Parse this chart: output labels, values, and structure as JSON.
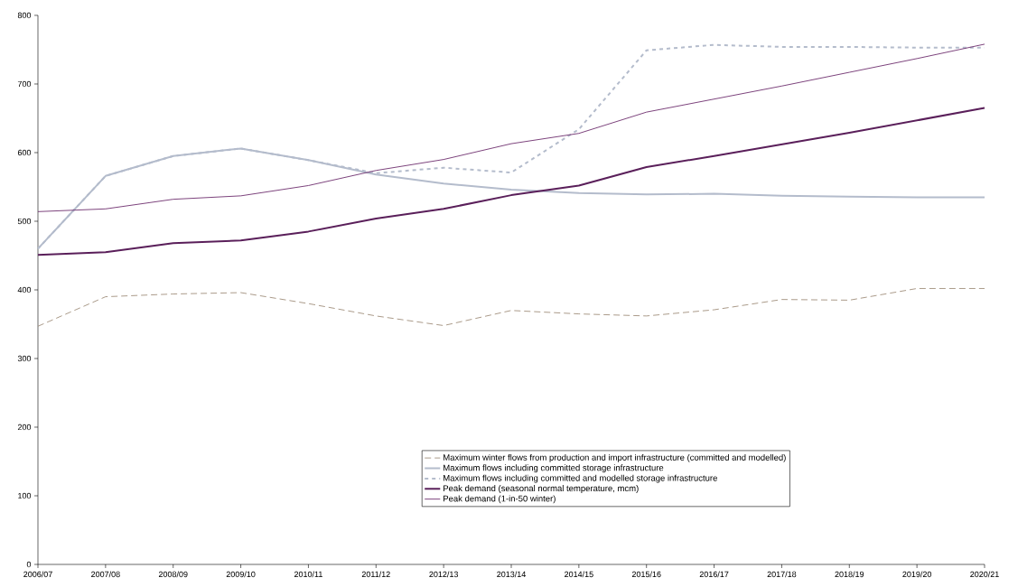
{
  "chart_data": {
    "type": "line",
    "categories": [
      "2006/07",
      "2007/08",
      "2008/09",
      "2009/10",
      "2010/11",
      "2011/12",
      "2012/13",
      "2013/14",
      "2014/15",
      "2015/16",
      "2016/17",
      "2017/18",
      "2018/19",
      "2019/20",
      "2020/21"
    ],
    "ylim": [
      0,
      800
    ],
    "yticks": [
      0,
      100,
      200,
      300,
      400,
      500,
      600,
      700,
      800
    ],
    "grid": false,
    "legend": "bottom",
    "marker": "none",
    "series": [
      {
        "name": "Maximum winter flows from production and import infrastructure (committed and modelled)",
        "color": "#a08e7c",
        "line_style": "dashed",
        "values": [
          347,
          390,
          394,
          396,
          380,
          362,
          348,
          370,
          365,
          362,
          371,
          386,
          385,
          402,
          402
        ]
      },
      {
        "name": "Maximum flows including committed storage infrastructure",
        "color": "#b4bccc",
        "line_style": "solid",
        "values": [
          460,
          566,
          595,
          606,
          589,
          568,
          555,
          546,
          541,
          539,
          540,
          537,
          536,
          535,
          535
        ]
      },
      {
        "name": "Maximum flows including committed and modelled storage infrastructure",
        "color": "#b4bccc",
        "line_style": "dotted",
        "values": [
          460,
          566,
          595,
          606,
          589,
          570,
          578,
          571,
          634,
          749,
          757,
          754,
          754,
          753,
          753
        ]
      },
      {
        "name": "Peak demand (seasonal normal temperature, mcm)",
        "color": "#5a1f5a",
        "line_style": "solid",
        "values": [
          451,
          455,
          468,
          472,
          485,
          504,
          518,
          538,
          552,
          579,
          595,
          612,
          629,
          647,
          665
        ]
      },
      {
        "name": "Peak demand (1-in-50 winter)",
        "color": "#6e2f6e",
        "line_style": "solid",
        "values": [
          514,
          518,
          532,
          537,
          552,
          574,
          590,
          613,
          628,
          659,
          678,
          697,
          717,
          737,
          758
        ]
      }
    ]
  }
}
